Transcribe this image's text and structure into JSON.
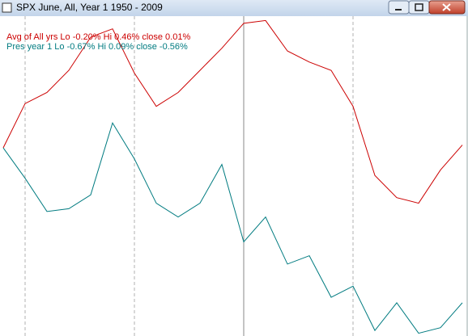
{
  "chart_data": {
    "type": "line",
    "title": "SPX June,  All,  Year 1   1950 - 2009",
    "categories": [
      null,
      null,
      null,
      null,
      null,
      null,
      null,
      null,
      null,
      null,
      null,
      null,
      null,
      null,
      null,
      null,
      null,
      null,
      null,
      null,
      null,
      null
    ],
    "series": [
      {
        "name": "Avg of All yrs  Lo -0.20%  Hi 0.46%  close 0.01%",
        "color": "#cc0000",
        "values": [
          0,
          0.16,
          0.2,
          0.28,
          0.4,
          0.43,
          0.27,
          0.15,
          0.2,
          0.28,
          0.36,
          0.45,
          0.46,
          0.35,
          0.31,
          0.28,
          0.15,
          -0.1,
          -0.18,
          -0.2,
          -0.08,
          0.01
        ]
      },
      {
        "name": "Pres year 1  Lo -0.67%  Hi 0.09%  close -0.56%",
        "color": "#007b80",
        "values": [
          0,
          -0.11,
          -0.23,
          -0.22,
          -0.17,
          0.09,
          -0.04,
          -0.2,
          -0.25,
          -0.2,
          -0.06,
          -0.34,
          -0.25,
          -0.42,
          -0.39,
          -0.54,
          -0.5,
          -0.66,
          -0.56,
          -0.67,
          -0.65,
          -0.56
        ]
      }
    ],
    "ylim": [
      -0.68,
      0.47
    ]
  }
}
